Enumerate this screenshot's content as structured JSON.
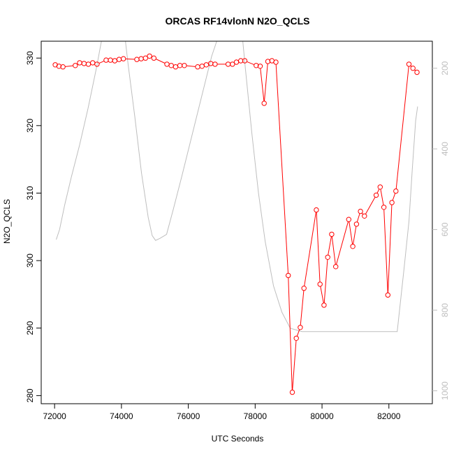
{
  "chart_data": {
    "type": "line",
    "title": "ORCAS RF14vlonN N2O_QCLS",
    "xlabel": "UTC Seconds",
    "ylabel": "N2O_QCLS",
    "xlim": [
      71600,
      83300
    ],
    "ylim": [
      278.8,
      332.5
    ],
    "x_ticks": [
      72000,
      74000,
      76000,
      78000,
      80000,
      82000
    ],
    "y_ticks": [
      280,
      290,
      300,
      310,
      320,
      330
    ],
    "y2_ticks": [
      200,
      400,
      600,
      800,
      1000
    ],
    "y2lim": [
      1032,
      133
    ],
    "colors": {
      "main": "#ff0000",
      "secondary": "#bebebe",
      "axis": "#000000",
      "secondary_axis": "#bebebe"
    },
    "series": [
      {
        "axis": "left",
        "color": "#ff0000",
        "points": [
          [
            72020,
            329.0
          ],
          [
            72130,
            328.8
          ],
          [
            72250,
            328.7
          ],
          [
            72620,
            328.9
          ],
          [
            72750,
            329.3
          ],
          [
            72880,
            329.2
          ],
          [
            73010,
            329.1
          ],
          [
            73140,
            329.3
          ],
          [
            73270,
            329.1
          ],
          [
            73540,
            329.7
          ],
          [
            73670,
            329.7
          ],
          [
            73800,
            329.6
          ],
          [
            73930,
            329.8
          ],
          [
            74060,
            329.9
          ],
          [
            74460,
            329.8
          ],
          [
            74590,
            329.9
          ],
          [
            74720,
            330.0
          ],
          [
            74840,
            330.3
          ],
          [
            74970,
            330.0
          ],
          [
            75360,
            329.1
          ],
          [
            75490,
            328.9
          ],
          [
            75620,
            328.7
          ],
          [
            75750,
            328.9
          ],
          [
            75880,
            328.9
          ],
          [
            76280,
            328.7
          ],
          [
            76410,
            328.8
          ],
          [
            76540,
            329.0
          ],
          [
            76670,
            329.2
          ],
          [
            76800,
            329.1
          ],
          [
            77190,
            329.1
          ],
          [
            77320,
            329.1
          ],
          [
            77440,
            329.4
          ],
          [
            77570,
            329.6
          ],
          [
            77690,
            329.6
          ],
          [
            78030,
            328.9
          ],
          [
            78150,
            328.8
          ],
          [
            78270,
            323.3
          ],
          [
            78380,
            329.5
          ],
          [
            78500,
            329.6
          ],
          [
            78620,
            329.4
          ],
          [
            78990,
            297.8
          ],
          [
            79110,
            280.5
          ],
          [
            79230,
            288.5
          ],
          [
            79350,
            290.1
          ],
          [
            79460,
            295.9
          ],
          [
            79830,
            307.5
          ],
          [
            79940,
            296.5
          ],
          [
            80060,
            293.4
          ],
          [
            80170,
            300.5
          ],
          [
            80290,
            303.9
          ],
          [
            80410,
            299.1
          ],
          [
            80800,
            306.1
          ],
          [
            80920,
            302.1
          ],
          [
            81030,
            305.4
          ],
          [
            81150,
            307.3
          ],
          [
            81270,
            306.6
          ],
          [
            81620,
            309.7
          ],
          [
            81740,
            310.9
          ],
          [
            81850,
            307.9
          ],
          [
            81970,
            294.9
          ],
          [
            82090,
            308.6
          ],
          [
            82210,
            310.3
          ],
          [
            82600,
            329.1
          ],
          [
            82720,
            328.5
          ],
          [
            82840,
            327.9
          ]
        ]
      },
      {
        "axis": "right",
        "color": "#bebebe",
        "points": [
          [
            72050,
            625
          ],
          [
            72150,
            600
          ],
          [
            72300,
            540
          ],
          [
            72500,
            470
          ],
          [
            72750,
            390
          ],
          [
            73000,
            300
          ],
          [
            73250,
            200
          ],
          [
            73400,
            133
          ],
          [
            74120,
            133
          ],
          [
            74200,
            190
          ],
          [
            74400,
            320
          ],
          [
            74600,
            460
          ],
          [
            74800,
            570
          ],
          [
            74920,
            615
          ],
          [
            75020,
            627
          ],
          [
            75150,
            622
          ],
          [
            75350,
            612
          ],
          [
            75550,
            550
          ],
          [
            75800,
            470
          ],
          [
            76100,
            370
          ],
          [
            76400,
            270
          ],
          [
            76700,
            170
          ],
          [
            76850,
            133
          ],
          [
            77630,
            133
          ],
          [
            77700,
            195
          ],
          [
            77900,
            360
          ],
          [
            78100,
            510
          ],
          [
            78300,
            630
          ],
          [
            78550,
            740
          ],
          [
            78800,
            805
          ],
          [
            79050,
            845
          ],
          [
            79400,
            853
          ],
          [
            80500,
            853
          ],
          [
            81500,
            853
          ],
          [
            82250,
            853
          ],
          [
            82450,
            700
          ],
          [
            82600,
            580
          ],
          [
            82700,
            450
          ],
          [
            82800,
            330
          ],
          [
            82860,
            295
          ]
        ]
      }
    ]
  }
}
